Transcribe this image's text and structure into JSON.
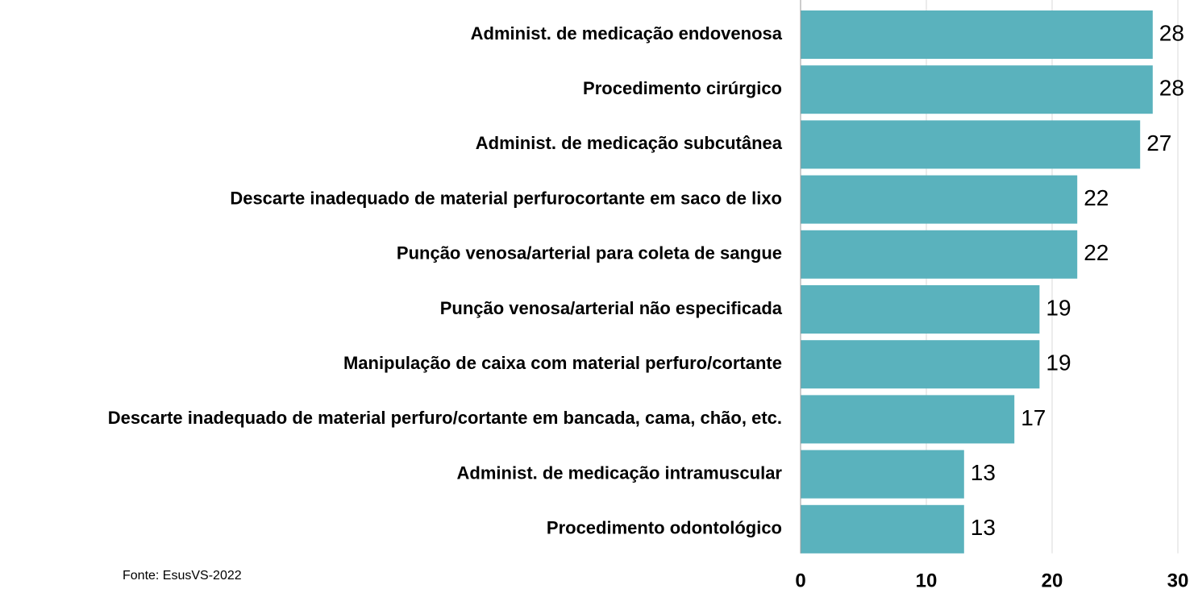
{
  "chart_data": {
    "type": "bar",
    "orientation": "horizontal",
    "categories": [
      "Administ. de medicação endovenosa",
      "Procedimento cirúrgico",
      "Administ. de medicação subcutânea",
      "Descarte inadequado de material perfurocortante em saco de lixo",
      "Punção venosa/arterial para coleta de sangue",
      "Punção venosa/arterial não especificada",
      "Manipulação de caixa com material perfuro/cortante",
      "Descarte inadequado de material perfuro/cortante em bancada, cama, chão, etc.",
      "Administ. de medicação intramuscular",
      "Procedimento odontológico"
    ],
    "values": [
      28,
      28,
      27,
      22,
      22,
      19,
      19,
      17,
      13,
      13
    ],
    "color": "#5ab2bd",
    "xlim": [
      0,
      30
    ],
    "xticks": [
      0,
      10,
      20,
      30
    ],
    "grid": true,
    "source": "Fonte: EsusVS-2022"
  }
}
